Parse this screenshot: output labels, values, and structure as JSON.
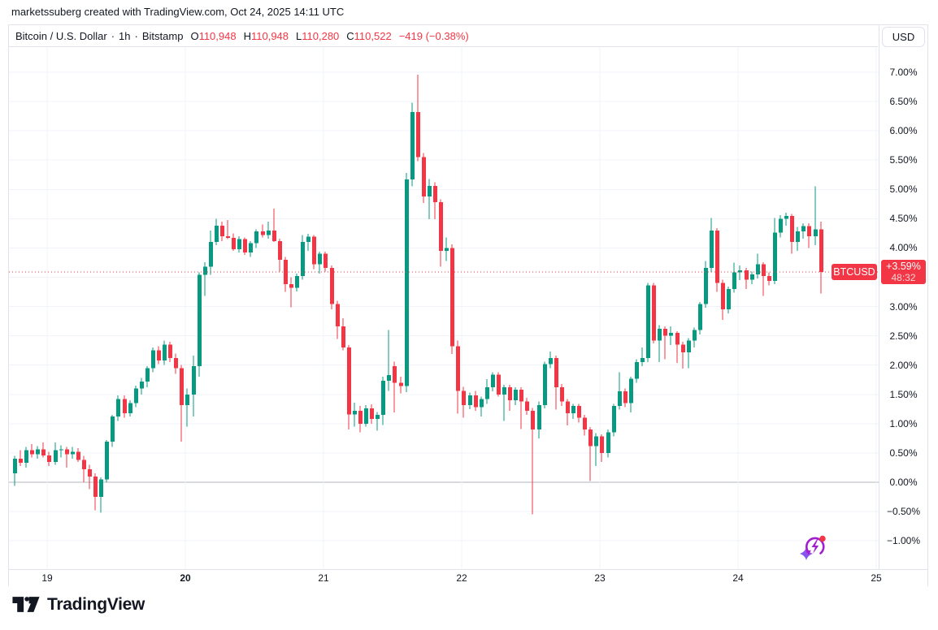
{
  "attribution": "marketssuberg created with TradingView.com, Oct 24, 2025 14:11 UTC",
  "header": {
    "title": "Bitcoin / U.S. Dollar",
    "sep": "·",
    "interval": "1h",
    "exchange": "Bitstamp",
    "ohlc": {
      "o_label": "O",
      "o_value": "110,948",
      "h_label": "H",
      "h_value": "110,948",
      "l_label": "L",
      "l_value": "110,280",
      "c_label": "C",
      "c_value": "110,522",
      "change": "−419 (−0.38%)"
    }
  },
  "price_scale": {
    "currency_button": "USD",
    "badge": {
      "symbol": "BTCUSD",
      "change": "+3.59%",
      "countdown": "48:32"
    }
  },
  "footer": {
    "logo_text": "TradingView"
  },
  "colors": {
    "up": "#089981",
    "down": "#f23645",
    "accent_red": "#f23645",
    "text": "#131722",
    "grid": "#f0f3fa",
    "axis_border": "#e0e3eb",
    "zero_line": "#b2b5be",
    "icon_purple": "#a21fd1",
    "icon_blue": "#5d5fef"
  },
  "chart_data": {
    "type": "candlestick",
    "symbol": "BTCUSD",
    "title": "Bitcoin / U.S. Dollar",
    "exchange": "Bitstamp",
    "interval": "1h",
    "y_unit": "percent_change",
    "grid": true,
    "legend_position": "none",
    "last_change_pct": 3.59,
    "bar_countdown": "48:32",
    "ohlc_last": {
      "open": 110948,
      "high": 110948,
      "low": 110280,
      "close": 110522,
      "change": -419,
      "change_pct": -0.38
    },
    "ylim": [
      -1.48,
      7.8
    ],
    "y_ticks": [
      {
        "label": "7.00%",
        "value": 7.0
      },
      {
        "label": "6.50%",
        "value": 6.5
      },
      {
        "label": "6.00%",
        "value": 6.0
      },
      {
        "label": "5.50%",
        "value": 5.5
      },
      {
        "label": "5.00%",
        "value": 5.0
      },
      {
        "label": "4.50%",
        "value": 4.5
      },
      {
        "label": "4.00%",
        "value": 4.0
      },
      {
        "label": "3.50%",
        "value": 3.5
      },
      {
        "label": "3.00%",
        "value": 3.0
      },
      {
        "label": "2.50%",
        "value": 2.5
      },
      {
        "label": "2.00%",
        "value": 2.0
      },
      {
        "label": "1.50%",
        "value": 1.5
      },
      {
        "label": "1.00%",
        "value": 1.0
      },
      {
        "label": "0.50%",
        "value": 0.5
      },
      {
        "label": "0.00%",
        "value": 0.0
      },
      {
        "label": "−0.50%",
        "value": -0.5
      },
      {
        "label": "−1.00%",
        "value": -1.0
      }
    ],
    "x_ticks": [
      {
        "label": "19",
        "day_index": 0,
        "bold": false
      },
      {
        "label": "20",
        "day_index": 1,
        "bold": true
      },
      {
        "label": "21",
        "day_index": 2,
        "bold": false
      },
      {
        "label": "22",
        "day_index": 3,
        "bold": false
      },
      {
        "label": "23",
        "day_index": 4,
        "bold": false
      },
      {
        "label": "24",
        "day_index": 5,
        "bold": false
      },
      {
        "label": "25",
        "day_index": 6,
        "bold": false
      }
    ],
    "candles": [
      [
        0.15,
        0.45,
        -0.06,
        0.4
      ],
      [
        0.4,
        0.55,
        0.28,
        0.33
      ],
      [
        0.33,
        0.6,
        0.25,
        0.55
      ],
      [
        0.55,
        0.65,
        0.42,
        0.48
      ],
      [
        0.48,
        0.62,
        0.4,
        0.56
      ],
      [
        0.56,
        0.68,
        0.42,
        0.46
      ],
      [
        0.46,
        0.52,
        0.28,
        0.35
      ],
      [
        0.35,
        0.68,
        0.3,
        0.55
      ],
      [
        0.55,
        0.63,
        0.42,
        0.56
      ],
      [
        0.56,
        0.6,
        0.25,
        0.48
      ],
      [
        0.48,
        0.6,
        0.4,
        0.52
      ],
      [
        0.52,
        0.58,
        0.35,
        0.38
      ],
      [
        0.38,
        0.45,
        0.0,
        0.22
      ],
      [
        0.22,
        0.3,
        -0.12,
        0.1
      ],
      [
        0.1,
        0.15,
        -0.48,
        -0.25
      ],
      [
        -0.25,
        0.08,
        -0.52,
        0.05
      ],
      [
        0.05,
        0.72,
        0.0,
        0.69
      ],
      [
        0.69,
        1.15,
        0.6,
        1.12
      ],
      [
        1.12,
        1.48,
        1.05,
        1.42
      ],
      [
        1.42,
        1.48,
        1.1,
        1.18
      ],
      [
        1.18,
        1.4,
        1.12,
        1.35
      ],
      [
        1.35,
        1.65,
        1.28,
        1.6
      ],
      [
        1.6,
        1.78,
        1.5,
        1.72
      ],
      [
        1.72,
        1.98,
        1.62,
        1.95
      ],
      [
        1.95,
        2.3,
        1.88,
        2.25
      ],
      [
        2.25,
        2.32,
        2.02,
        2.08
      ],
      [
        2.08,
        2.42,
        2.0,
        2.35
      ],
      [
        2.35,
        2.4,
        2.05,
        2.12
      ],
      [
        2.12,
        2.2,
        1.85,
        1.95
      ],
      [
        1.95,
        2.0,
        0.69,
        1.32
      ],
      [
        1.32,
        1.6,
        0.95,
        1.5
      ],
      [
        1.5,
        2.16,
        1.12,
        1.98
      ],
      [
        1.98,
        3.58,
        1.8,
        3.54
      ],
      [
        3.54,
        3.76,
        3.18,
        3.68
      ],
      [
        3.68,
        4.3,
        3.54,
        4.1
      ],
      [
        4.1,
        4.5,
        4.05,
        4.38
      ],
      [
        4.38,
        4.45,
        4.12,
        4.2
      ],
      [
        4.2,
        4.48,
        4.15,
        4.17
      ],
      [
        4.17,
        4.25,
        3.95,
        3.98
      ],
      [
        3.98,
        4.2,
        3.92,
        4.15
      ],
      [
        4.15,
        4.18,
        3.88,
        3.92
      ],
      [
        3.92,
        4.12,
        3.85,
        4.08
      ],
      [
        4.08,
        4.32,
        4.0,
        4.28
      ],
      [
        4.28,
        4.4,
        4.18,
        4.22
      ],
      [
        4.22,
        4.45,
        4.16,
        4.3
      ],
      [
        4.3,
        4.67,
        4.1,
        4.12
      ],
      [
        4.12,
        4.16,
        3.6,
        3.8
      ],
      [
        3.8,
        3.85,
        3.25,
        3.38
      ],
      [
        3.38,
        3.5,
        2.99,
        3.32
      ],
      [
        3.32,
        3.56,
        3.26,
        3.52
      ],
      [
        3.52,
        4.22,
        3.46,
        4.1
      ],
      [
        4.1,
        4.24,
        3.95,
        4.19
      ],
      [
        4.19,
        4.22,
        3.64,
        3.72
      ],
      [
        3.72,
        3.94,
        3.56,
        3.9
      ],
      [
        3.9,
        3.94,
        3.6,
        3.66
      ],
      [
        3.66,
        3.7,
        2.95,
        3.04
      ],
      [
        3.04,
        3.1,
        2.45,
        2.66
      ],
      [
        2.66,
        2.8,
        2.25,
        2.3
      ],
      [
        2.3,
        2.34,
        0.9,
        1.16
      ],
      [
        1.16,
        1.36,
        0.95,
        1.22
      ],
      [
        1.22,
        1.3,
        0.85,
        1.0
      ],
      [
        1.0,
        1.32,
        0.95,
        1.26
      ],
      [
        1.26,
        1.33,
        1.0,
        1.08
      ],
      [
        1.08,
        1.2,
        0.88,
        1.15
      ],
      [
        1.15,
        1.8,
        0.98,
        1.73
      ],
      [
        1.73,
        2.6,
        1.56,
        1.83
      ],
      [
        1.98,
        2.06,
        1.19,
        1.7
      ],
      [
        1.7,
        1.8,
        1.52,
        1.64
      ],
      [
        1.64,
        5.28,
        1.54,
        5.17
      ],
      [
        5.17,
        6.48,
        5.05,
        6.32
      ],
      [
        6.32,
        6.96,
        5.48,
        5.55
      ],
      [
        5.55,
        5.62,
        4.77,
        4.88
      ],
      [
        4.88,
        5.18,
        4.49,
        5.06
      ],
      [
        5.06,
        5.12,
        4.49,
        4.78
      ],
      [
        4.78,
        4.83,
        3.68,
        3.95
      ],
      [
        3.95,
        4.18,
        3.78,
        4.0
      ],
      [
        4.0,
        4.06,
        2.19,
        2.32
      ],
      [
        2.32,
        2.42,
        1.17,
        1.56
      ],
      [
        1.56,
        1.63,
        1.1,
        1.32
      ],
      [
        1.32,
        1.53,
        1.25,
        1.48
      ],
      [
        1.48,
        1.56,
        1.22,
        1.28
      ],
      [
        1.28,
        1.46,
        1.12,
        1.42
      ],
      [
        1.42,
        1.76,
        1.34,
        1.62
      ],
      [
        1.62,
        1.88,
        1.55,
        1.84
      ],
      [
        1.84,
        1.88,
        1.46,
        1.5
      ],
      [
        1.5,
        1.66,
        1.05,
        1.62
      ],
      [
        1.62,
        1.66,
        1.22,
        1.4
      ],
      [
        1.4,
        1.62,
        1.32,
        1.58
      ],
      [
        1.58,
        1.62,
        0.91,
        1.38
      ],
      [
        1.38,
        1.44,
        1.15,
        1.22
      ],
      [
        1.22,
        1.27,
        -0.55,
        0.9
      ],
      [
        0.9,
        1.38,
        0.75,
        1.32
      ],
      [
        1.32,
        2.06,
        1.26,
        2.02
      ],
      [
        2.02,
        2.23,
        1.95,
        2.12
      ],
      [
        2.12,
        2.16,
        1.24,
        1.62
      ],
      [
        1.62,
        1.68,
        1.3,
        1.38
      ],
      [
        1.38,
        1.42,
        0.97,
        1.18
      ],
      [
        1.18,
        1.34,
        1.08,
        1.3
      ],
      [
        1.3,
        1.34,
        1.02,
        1.1
      ],
      [
        1.1,
        1.15,
        0.8,
        0.9
      ],
      [
        0.9,
        0.94,
        0.02,
        0.62
      ],
      [
        0.62,
        0.84,
        0.28,
        0.78
      ],
      [
        0.78,
        0.82,
        0.35,
        0.5
      ],
      [
        0.5,
        0.9,
        0.42,
        0.85
      ],
      [
        0.85,
        1.34,
        0.78,
        1.3
      ],
      [
        1.3,
        1.88,
        1.24,
        1.55
      ],
      [
        1.55,
        1.6,
        1.28,
        1.35
      ],
      [
        1.35,
        1.8,
        1.19,
        1.77
      ],
      [
        1.77,
        2.1,
        1.7,
        2.05
      ],
      [
        2.05,
        2.3,
        1.98,
        2.12
      ],
      [
        2.12,
        3.4,
        2.05,
        3.36
      ],
      [
        3.36,
        3.4,
        2.37,
        2.42
      ],
      [
        2.42,
        2.68,
        2.05,
        2.62
      ],
      [
        2.62,
        2.66,
        2.1,
        2.5
      ],
      [
        2.5,
        2.66,
        2.34,
        2.55
      ],
      [
        2.55,
        2.58,
        2.04,
        2.35
      ],
      [
        2.35,
        2.4,
        1.94,
        2.22
      ],
      [
        2.22,
        2.46,
        1.95,
        2.42
      ],
      [
        2.42,
        2.64,
        2.3,
        2.6
      ],
      [
        2.6,
        3.08,
        2.52,
        3.04
      ],
      [
        3.04,
        3.78,
        2.98,
        3.66
      ],
      [
        3.66,
        4.51,
        3.58,
        4.3
      ],
      [
        4.3,
        4.34,
        3.25,
        3.4
      ],
      [
        3.4,
        3.46,
        2.77,
        2.95
      ],
      [
        2.95,
        3.34,
        2.88,
        3.3
      ],
      [
        3.3,
        3.75,
        3.24,
        3.58
      ],
      [
        3.58,
        3.7,
        3.45,
        3.62
      ],
      [
        3.62,
        3.66,
        3.3,
        3.46
      ],
      [
        3.46,
        3.6,
        3.38,
        3.55
      ],
      [
        3.55,
        3.9,
        3.48,
        3.72
      ],
      [
        3.72,
        3.76,
        3.18,
        3.52
      ],
      [
        3.52,
        3.58,
        3.36,
        3.44
      ],
      [
        3.44,
        4.51,
        3.38,
        4.26
      ],
      [
        4.26,
        4.56,
        4.18,
        4.5
      ],
      [
        4.5,
        4.6,
        4.38,
        4.55
      ],
      [
        4.55,
        4.58,
        3.9,
        4.1
      ],
      [
        4.1,
        4.36,
        3.95,
        4.28
      ],
      [
        4.28,
        4.42,
        4.16,
        4.37
      ],
      [
        4.37,
        4.42,
        4.0,
        4.2
      ],
      [
        4.2,
        5.05,
        4.05,
        4.32
      ],
      [
        4.32,
        4.45,
        3.22,
        3.59
      ]
    ]
  }
}
